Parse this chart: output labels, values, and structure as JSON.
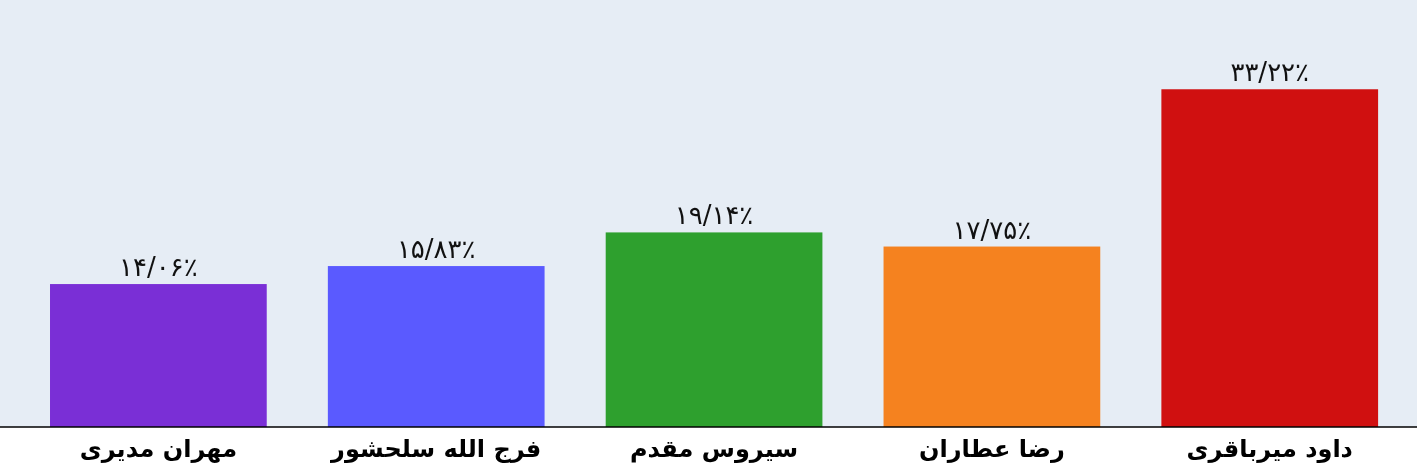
{
  "chart_data": {
    "type": "bar",
    "categories": [
      "مهران مدیری",
      "فرج الله سلحشور",
      "سیروس مقدم",
      "رضا عطاران",
      "داود میرباقری"
    ],
    "values": [
      14.06,
      15.83,
      19.14,
      17.75,
      33.22
    ],
    "colors": [
      "#7a2fd6",
      "#5a5aff",
      "#2ea02e",
      "#f5821f",
      "#d01010"
    ],
    "value_labels": [
      "۱۴/۰۶٪",
      "۱۵/۸۳٪",
      "۱۹/۱۴٪",
      "۱۷/۷۵٪",
      "۳۳/۲۲٪"
    ],
    "ylim": [
      0,
      42
    ]
  }
}
